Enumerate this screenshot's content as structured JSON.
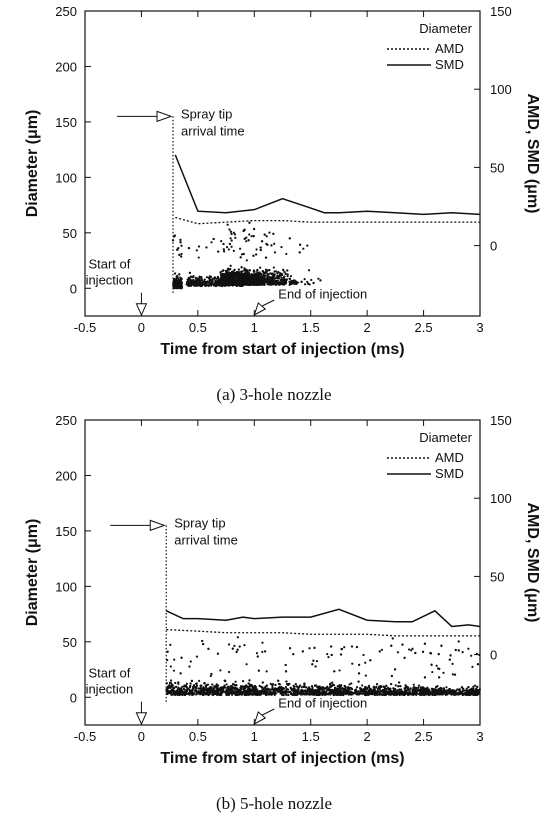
{
  "chart_data": [
    {
      "type": "scatter",
      "caption": "(a)  3-hole nozzle",
      "xlabel": "Time from start of injection (ms)",
      "ylabel": "Diameter (μm)",
      "y2label": "AMD, SMD (μm)",
      "xlim": [
        -0.5,
        3
      ],
      "ylim": [
        -25,
        250
      ],
      "y2lim": [
        -45,
        150
      ],
      "xticks": [
        "-0.5",
        "0",
        "0.5",
        "1",
        "1.5",
        "2",
        "2.5",
        "3"
      ],
      "yticks": [
        "0",
        "50",
        "100",
        "150",
        "200",
        "250"
      ],
      "y2ticks": [
        "0",
        "50",
        "100",
        "150"
      ],
      "legend_title": "Diameter",
      "legend_position": "top-right",
      "series": [
        {
          "name": "AMD",
          "style": "dotted",
          "x": [
            0.3,
            0.5,
            0.75,
            1.0,
            1.25,
            1.5,
            1.75,
            2.0,
            2.25,
            2.5,
            2.75,
            3.0
          ],
          "y": [
            18,
            14,
            15,
            16,
            16,
            15,
            15,
            15,
            15,
            15,
            15,
            15
          ]
        },
        {
          "name": "SMD",
          "style": "solid",
          "x": [
            0.3,
            0.5,
            0.75,
            1.0,
            1.25,
            1.5,
            1.62,
            1.75,
            2.0,
            2.25,
            2.5,
            2.75,
            3.0
          ],
          "y": [
            58,
            22,
            21,
            23,
            30,
            24,
            21,
            21,
            22,
            21,
            20,
            21,
            20
          ]
        }
      ],
      "annotations": [
        {
          "text": [
            "Spray tip",
            "arrival time"
          ],
          "x": 0.28,
          "y": 155
        },
        {
          "text": [
            "Start of",
            "injection"
          ],
          "x": 0,
          "y": -20
        },
        {
          "text": [
            "End of injection"
          ],
          "x": 1.0,
          "y": -20
        }
      ]
    },
    {
      "type": "scatter",
      "caption": "(b)  5-hole nozzle",
      "xlabel": "Time from start of injection (ms)",
      "ylabel": "Diameter (μm)",
      "y2label": "AMD, SMD (μm)",
      "xlim": [
        -0.5,
        3
      ],
      "ylim": [
        -25,
        250
      ],
      "y2lim": [
        -45,
        150
      ],
      "xticks": [
        "-0.5",
        "0",
        "0.5",
        "1",
        "1.5",
        "2",
        "2.5",
        "3"
      ],
      "yticks": [
        "0",
        "50",
        "100",
        "150",
        "200",
        "250"
      ],
      "y2ticks": [
        "0",
        "50",
        "100",
        "150"
      ],
      "legend_title": "Diameter",
      "legend_position": "top-right",
      "series": [
        {
          "name": "AMD",
          "style": "dotted",
          "x": [
            0.22,
            0.5,
            0.75,
            1.0,
            1.25,
            1.5,
            1.75,
            2.0,
            2.25,
            2.5,
            2.75,
            3.0
          ],
          "y": [
            16,
            15,
            14,
            14,
            14,
            13,
            13,
            13,
            12,
            12,
            12,
            12
          ]
        },
        {
          "name": "SMD",
          "style": "solid",
          "x": [
            0.22,
            0.37,
            0.5,
            0.75,
            0.9,
            1.0,
            1.25,
            1.5,
            1.75,
            2.0,
            2.25,
            2.4,
            2.6,
            2.75,
            2.9,
            3.0
          ],
          "y": [
            28,
            23,
            23,
            22,
            24,
            23,
            24,
            24,
            29,
            22,
            21,
            21,
            28,
            18,
            19,
            18
          ]
        }
      ],
      "annotations": [
        {
          "text": [
            "Spray tip",
            "arrival time"
          ],
          "x": 0.22,
          "y": 155
        },
        {
          "text": [
            "Start of",
            "injection"
          ],
          "x": 0,
          "y": -20
        },
        {
          "text": [
            "End of injection"
          ],
          "x": 1.0,
          "y": -20
        }
      ]
    }
  ]
}
